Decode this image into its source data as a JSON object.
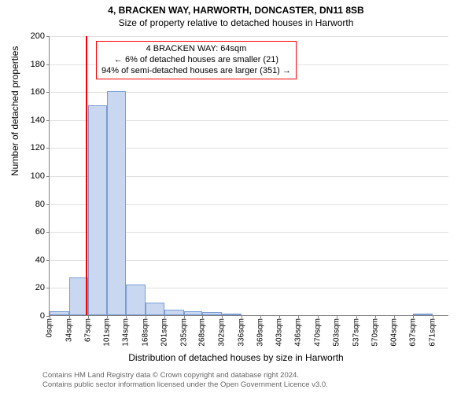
{
  "title": "4, BRACKEN WAY, HARWORTH, DONCASTER, DN11 8SB",
  "subtitle": "Size of property relative to detached houses in Harworth",
  "ylabel": "Number of detached properties",
  "xlabel": "Distribution of detached houses by size in Harworth",
  "annotation": {
    "line1": "4 BRACKEN WAY: 64sqm",
    "line2": "← 6% of detached houses are smaller (21)",
    "line3": "94% of semi-detached houses are larger (351) →"
  },
  "footer": {
    "line1": "Contains HM Land Registry data © Crown copyright and database right 2024.",
    "line2": "Contains public sector information licensed under the Open Government Licence v3.0."
  },
  "chart": {
    "type": "histogram",
    "background_color": "#ffffff",
    "grid_color": "#e0e0e0",
    "axis_color": "#808080",
    "ylim": [
      0,
      200
    ],
    "ytick_step": 20,
    "yticks": [
      0,
      20,
      40,
      60,
      80,
      100,
      120,
      140,
      160,
      180,
      200
    ],
    "xlim": [
      0,
      700
    ],
    "xticks": [
      0,
      34,
      67,
      101,
      134,
      168,
      201,
      235,
      268,
      302,
      336,
      369,
      403,
      436,
      470,
      503,
      537,
      570,
      604,
      637,
      671
    ],
    "xtick_labels": [
      "0sqm",
      "34sqm",
      "67sqm",
      "101sqm",
      "134sqm",
      "168sqm",
      "201sqm",
      "235sqm",
      "268sqm",
      "302sqm",
      "336sqm",
      "369sqm",
      "403sqm",
      "436sqm",
      "470sqm",
      "503sqm",
      "537sqm",
      "570sqm",
      "604sqm",
      "637sqm",
      "671sqm"
    ],
    "bar_color": "#c9d8f0",
    "bar_border_color": "#7a9cd4",
    "bars": [
      {
        "x0": 0,
        "x1": 34,
        "value": 3
      },
      {
        "x0": 34,
        "x1": 67,
        "value": 27
      },
      {
        "x0": 67,
        "x1": 101,
        "value": 150
      },
      {
        "x0": 101,
        "x1": 134,
        "value": 160
      },
      {
        "x0": 134,
        "x1": 168,
        "value": 22
      },
      {
        "x0": 168,
        "x1": 201,
        "value": 9
      },
      {
        "x0": 201,
        "x1": 235,
        "value": 4
      },
      {
        "x0": 235,
        "x1": 268,
        "value": 3
      },
      {
        "x0": 268,
        "x1": 302,
        "value": 2
      },
      {
        "x0": 302,
        "x1": 336,
        "value": 1
      },
      {
        "x0": 637,
        "x1": 671,
        "value": 1
      }
    ],
    "indicator_x": 64,
    "indicator_color": "#ff0000",
    "title_fontsize": 12,
    "label_fontsize": 12,
    "tick_fontsize": 11,
    "xtick_fontsize": 10
  }
}
